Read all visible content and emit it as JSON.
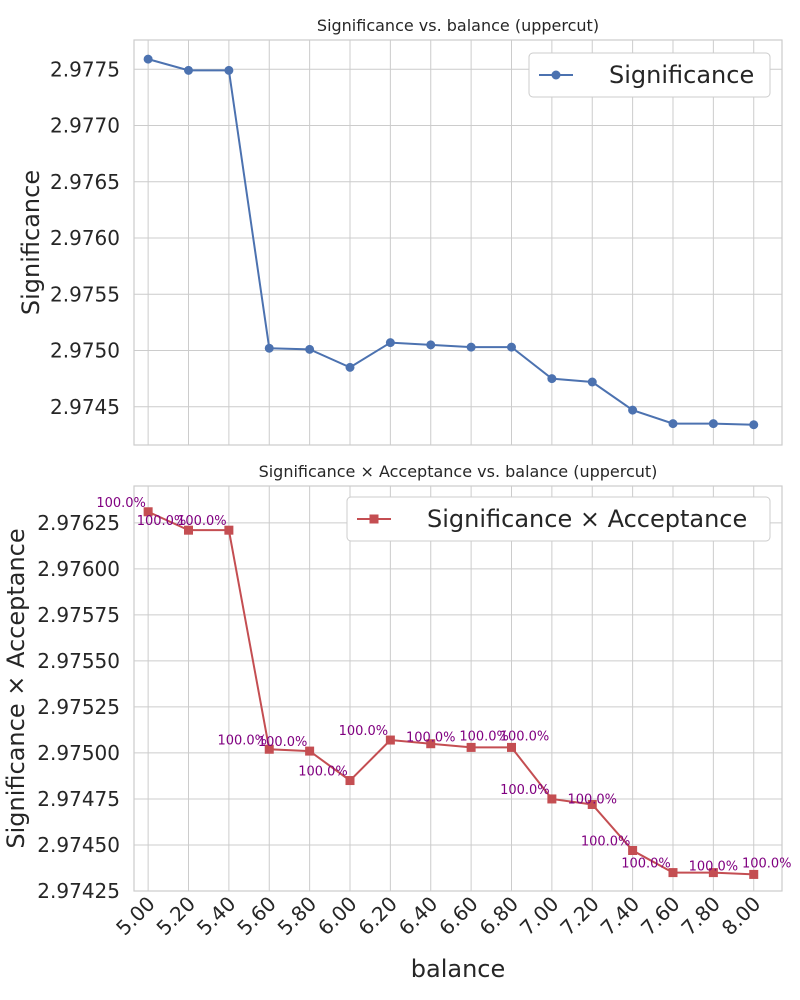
{
  "chart_data": [
    {
      "type": "line",
      "title": "Significance vs. balance (uppercut)",
      "xlabel": "",
      "ylabel": "Significance",
      "x": [
        5.0,
        5.2,
        5.4,
        5.6,
        5.8,
        6.0,
        6.2,
        6.4,
        6.6,
        6.8,
        7.0,
        7.2,
        7.4,
        7.6,
        7.8,
        8.0
      ],
      "xticks": [
        "5.00",
        "5.20",
        "5.40",
        "5.60",
        "5.80",
        "6.00",
        "6.20",
        "6.40",
        "6.60",
        "6.80",
        "7.00",
        "7.20",
        "7.40",
        "7.60",
        "7.80",
        "8.00"
      ],
      "yticks": [
        "2.9745",
        "2.9750",
        "2.9755",
        "2.9760",
        "2.9765",
        "2.9770",
        "2.9775"
      ],
      "ylim": [
        2.97416,
        2.97776
      ],
      "grid": true,
      "legend_position": "upper right",
      "series": [
        {
          "name": "Significance",
          "color": "#4c72b0",
          "marker": "circle",
          "values": [
            2.97759,
            2.97749,
            2.97749,
            2.97502,
            2.97501,
            2.97485,
            2.97507,
            2.97505,
            2.97503,
            2.97503,
            2.97475,
            2.97472,
            2.97447,
            2.97435,
            2.97435,
            2.97434
          ]
        }
      ]
    },
    {
      "type": "line",
      "title": "Significance × Acceptance vs. balance (uppercut)",
      "xlabel": "balance",
      "ylabel": "Significance × Acceptance",
      "x": [
        5.0,
        5.2,
        5.4,
        5.6,
        5.8,
        6.0,
        6.2,
        6.4,
        6.6,
        6.8,
        7.0,
        7.2,
        7.4,
        7.6,
        7.8,
        8.0
      ],
      "xticks": [
        "5.00",
        "5.20",
        "5.40",
        "5.60",
        "5.80",
        "6.00",
        "6.20",
        "6.40",
        "6.60",
        "6.80",
        "7.00",
        "7.20",
        "7.40",
        "7.60",
        "7.80",
        "8.00"
      ],
      "yticks": [
        "2.97425",
        "2.97450",
        "2.97475",
        "2.97500",
        "2.97525",
        "2.97550",
        "2.97575",
        "2.97600",
        "2.97625"
      ],
      "ylim": [
        2.97425,
        2.97645
      ],
      "grid": true,
      "legend_position": "upper right",
      "annotation_color": "#800080",
      "series": [
        {
          "name": "Significance × Acceptance",
          "color": "#c44e52",
          "marker": "square",
          "values": [
            2.97631,
            2.97621,
            2.97621,
            2.97502,
            2.97501,
            2.97485,
            2.97507,
            2.97505,
            2.97503,
            2.97503,
            2.97475,
            2.97472,
            2.97447,
            2.97435,
            2.97435,
            2.97434
          ],
          "labels": [
            "100.0%",
            "100.0%",
            "100.0%",
            "100.0%",
            "100.0%",
            "100.0%",
            "100.0%",
            "100.0%",
            "100.0%",
            "100.0%",
            "100.0%",
            "100.0%",
            "100.0%",
            "100.0%",
            "100.0%",
            "100.0%"
          ]
        }
      ]
    }
  ]
}
